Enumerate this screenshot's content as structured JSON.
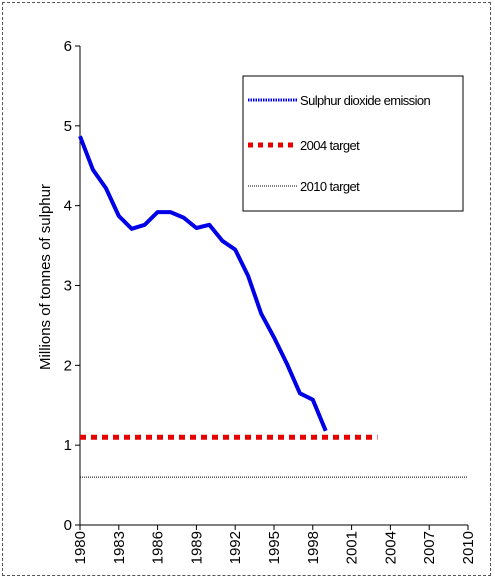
{
  "chart_data": {
    "type": "line",
    "title": "",
    "xlabel": "",
    "ylabel": "Millions of tonnes of sulphur",
    "xlim": [
      1980,
      2010
    ],
    "ylim": [
      0,
      6
    ],
    "x_ticks": [
      "1980",
      "1983",
      "1986",
      "1989",
      "1992",
      "1995",
      "1998",
      "2001",
      "2004",
      "2007",
      "2010"
    ],
    "y_ticks": [
      "0",
      "1",
      "2",
      "3",
      "4",
      "5",
      "6"
    ],
    "grid": false,
    "legend_position": "top-right",
    "series": [
      {
        "name": "Sulphur dioxide emission",
        "color": "#0000e6",
        "style": "solid",
        "x": [
          1980,
          1981,
          1982,
          1983,
          1984,
          1985,
          1986,
          1987,
          1988,
          1989,
          1990,
          1991,
          1992,
          1993,
          1994,
          1995,
          1996,
          1997,
          1998,
          1999
        ],
        "y": [
          4.87,
          4.45,
          4.22,
          3.87,
          3.71,
          3.76,
          3.92,
          3.92,
          3.85,
          3.72,
          3.76,
          3.56,
          3.45,
          3.12,
          2.65,
          2.35,
          2.02,
          1.65,
          1.57,
          1.18
        ]
      },
      {
        "name": "2004 target",
        "color": "#e60000",
        "style": "dashed",
        "x": [
          1980,
          2003
        ],
        "y": [
          1.1,
          1.1
        ]
      },
      {
        "name": "2010 target",
        "color": "#000000",
        "style": "dotted",
        "x": [
          1980,
          2010
        ],
        "y": [
          0.6,
          0.6
        ]
      }
    ]
  }
}
